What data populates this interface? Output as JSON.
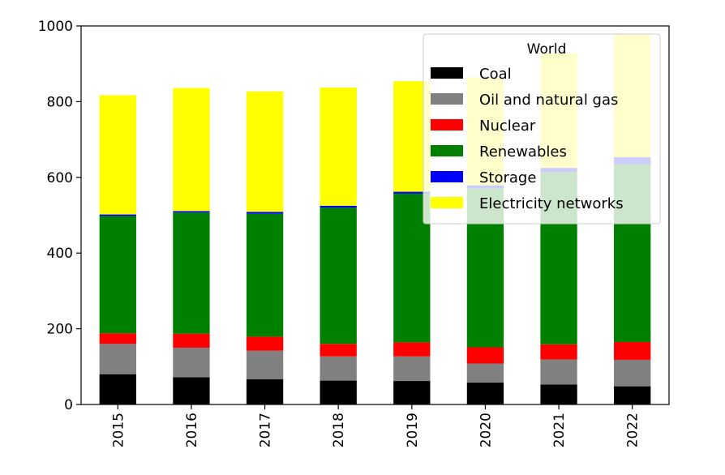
{
  "chart_data": {
    "type": "bar",
    "stacked": true,
    "categories": [
      "2015",
      "2016",
      "2017",
      "2018",
      "2019",
      "2020",
      "2021",
      "2022"
    ],
    "ylim": [
      0,
      1000
    ],
    "yticks": [
      0,
      200,
      400,
      600,
      800,
      1000
    ],
    "title": "",
    "xlabel": "",
    "ylabel": "",
    "legend": {
      "title": "World",
      "placement": "top-right"
    },
    "series": [
      {
        "name": "Coal",
        "color": "#000000",
        "values": [
          80,
          72,
          67,
          63,
          62,
          58,
          53,
          48
        ]
      },
      {
        "name": "Oil and natural gas",
        "color": "#808080",
        "values": [
          80,
          78,
          75,
          64,
          65,
          50,
          66,
          70
        ]
      },
      {
        "name": "Nuclear",
        "color": "#ff0000",
        "values": [
          28,
          37,
          37,
          33,
          37,
          43,
          40,
          47
        ]
      },
      {
        "name": "Renewables",
        "color": "#008000",
        "values": [
          310,
          320,
          325,
          360,
          393,
          420,
          455,
          470
        ]
      },
      {
        "name": "Storage",
        "color": "#0000ff",
        "values": [
          4,
          4,
          5,
          5,
          5,
          8,
          11,
          18
        ]
      },
      {
        "name": "Electricity networks",
        "color": "#ffff00",
        "values": [
          315,
          325,
          318,
          312,
          292,
          285,
          303,
          325
        ]
      }
    ]
  }
}
